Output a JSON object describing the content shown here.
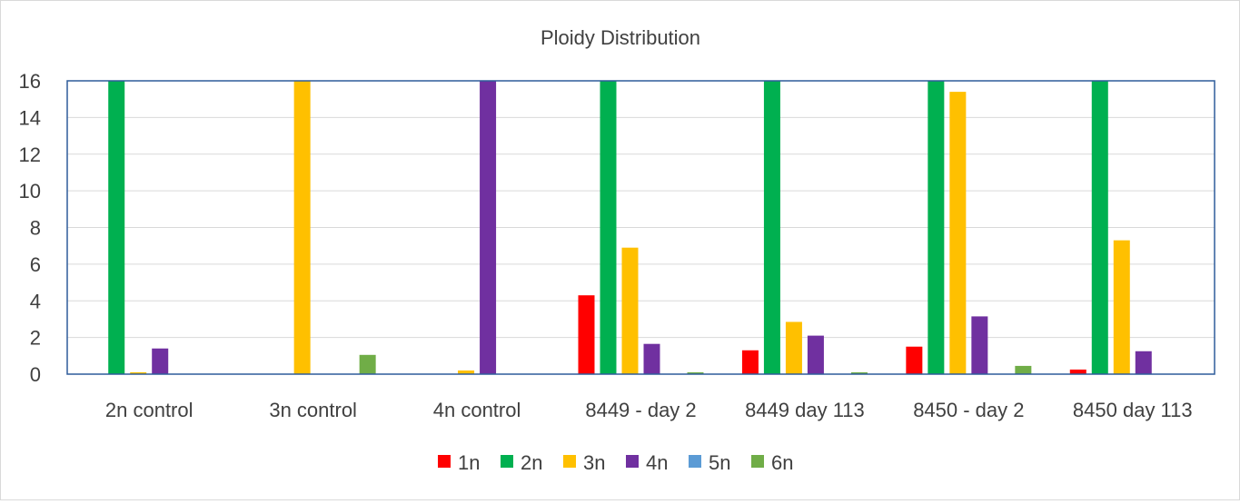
{
  "chart_data": {
    "type": "bar",
    "title": "Ploidy Distribution",
    "xlabel": "",
    "ylabel": "",
    "ylim": [
      0,
      16
    ],
    "yticks": [
      0,
      2,
      4,
      6,
      8,
      10,
      12,
      14,
      16
    ],
    "grid": true,
    "legend_position": "bottom",
    "categories": [
      "2n control",
      "3n control",
      "4n control",
      "8449 - day 2",
      "8449 day 113",
      "8450 - day 2",
      "8450 day 113"
    ],
    "series": [
      {
        "name": "1n",
        "color": "#ff0000",
        "values": [
          0,
          0,
          0,
          4.3,
          1.3,
          1.5,
          0.25
        ]
      },
      {
        "name": "2n",
        "color": "#00b050",
        "values": [
          16,
          0,
          0,
          16,
          16,
          16,
          16
        ]
      },
      {
        "name": "3n",
        "color": "#ffc000",
        "values": [
          0.1,
          16,
          0.2,
          6.9,
          2.85,
          15.4,
          7.3
        ]
      },
      {
        "name": "4n",
        "color": "#7030a0",
        "values": [
          1.4,
          0,
          16,
          1.65,
          2.1,
          3.15,
          1.25
        ]
      },
      {
        "name": "5n",
        "color": "#5b9bd5",
        "values": [
          0,
          0,
          0,
          0,
          0,
          0,
          0
        ]
      },
      {
        "name": "6n",
        "color": "#70ad47",
        "values": [
          0,
          1.05,
          0,
          0.1,
          0.1,
          0.45,
          0
        ]
      }
    ]
  }
}
